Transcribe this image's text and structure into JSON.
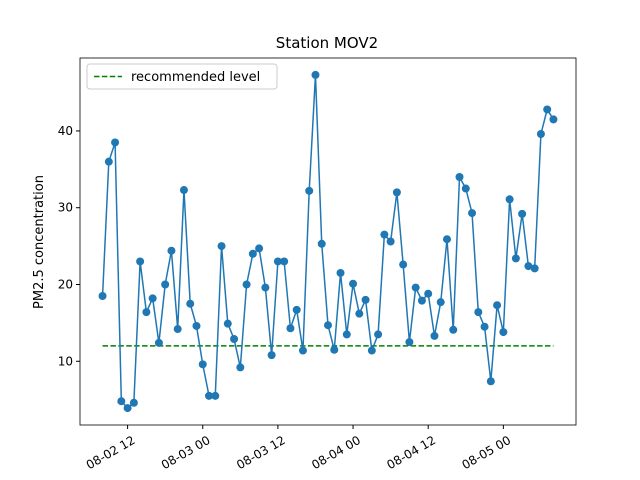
{
  "chart_data": {
    "type": "line",
    "title": "Station MOV2",
    "y_label": "PM2.5 concentration",
    "x": [
      "08-02 08",
      "08-02 09",
      "08-02 10",
      "08-02 11",
      "08-02 12",
      "08-02 13",
      "08-02 14",
      "08-02 15",
      "08-02 16",
      "08-02 17",
      "08-02 18",
      "08-02 19",
      "08-02 20",
      "08-02 21",
      "08-02 22",
      "08-02 23",
      "08-03 00",
      "08-03 01",
      "08-03 02",
      "08-03 03",
      "08-03 04",
      "08-03 05",
      "08-03 06",
      "08-03 07",
      "08-03 08",
      "08-03 09",
      "08-03 10",
      "08-03 11",
      "08-03 12",
      "08-03 13",
      "08-03 14",
      "08-03 15",
      "08-03 16",
      "08-03 17",
      "08-03 18",
      "08-03 19",
      "08-03 20",
      "08-03 21",
      "08-03 22",
      "08-03 23",
      "08-04 00",
      "08-04 01",
      "08-04 02",
      "08-04 03",
      "08-04 04",
      "08-04 05",
      "08-04 06",
      "08-04 07",
      "08-04 08",
      "08-04 09",
      "08-04 10",
      "08-04 11",
      "08-04 12",
      "08-04 13",
      "08-04 14",
      "08-04 15",
      "08-04 16",
      "08-04 17",
      "08-04 18",
      "08-04 19",
      "08-04 20",
      "08-04 21",
      "08-04 22",
      "08-04 23",
      "08-05 00",
      "08-05 01",
      "08-05 02",
      "08-05 03",
      "08-05 04",
      "08-05 05",
      "08-05 06",
      "08-05 07",
      "08-05 08"
    ],
    "series": [
      {
        "color": "#1f77b4",
        "values": [
          18.5,
          36,
          38.5,
          4.8,
          3.9,
          4.6,
          23,
          16.4,
          18.2,
          12.4,
          20,
          24.4,
          14.2,
          32.3,
          17.5,
          14.6,
          9.6,
          5.5,
          5.5,
          25,
          14.9,
          12.9,
          9.2,
          20,
          24,
          24.7,
          19.6,
          10.8,
          23,
          23,
          14.3,
          16.7,
          11.4,
          32.2,
          47.3,
          25.3,
          14.7,
          11.5,
          21.5,
          13.5,
          20.1,
          16.2,
          18,
          11.4,
          13.5,
          26.5,
          25.6,
          32,
          22.6,
          12.5,
          19.6,
          17.9,
          18.8,
          13.3,
          17.7,
          25.9,
          14.1,
          34,
          32.5,
          29.3,
          16.4,
          14.5,
          7.4,
          17.3,
          13.8,
          31.1,
          23.4,
          29.2,
          22.4,
          22.1,
          39.6,
          42.8,
          41.5
        ]
      }
    ],
    "reference": {
      "name": "recommended level",
      "value": 12,
      "color": "#008000"
    },
    "xlim": [
      "08-02 04:24",
      "08-05 11:36"
    ],
    "xticks": [
      "08-02 12",
      "08-03 00",
      "08-03 12",
      "08-04 00",
      "08-04 12",
      "08-05 00"
    ],
    "ylim": [
      1.7,
      49.5
    ],
    "yticks": [
      10,
      20,
      30,
      40
    ],
    "legend": "upper left"
  }
}
